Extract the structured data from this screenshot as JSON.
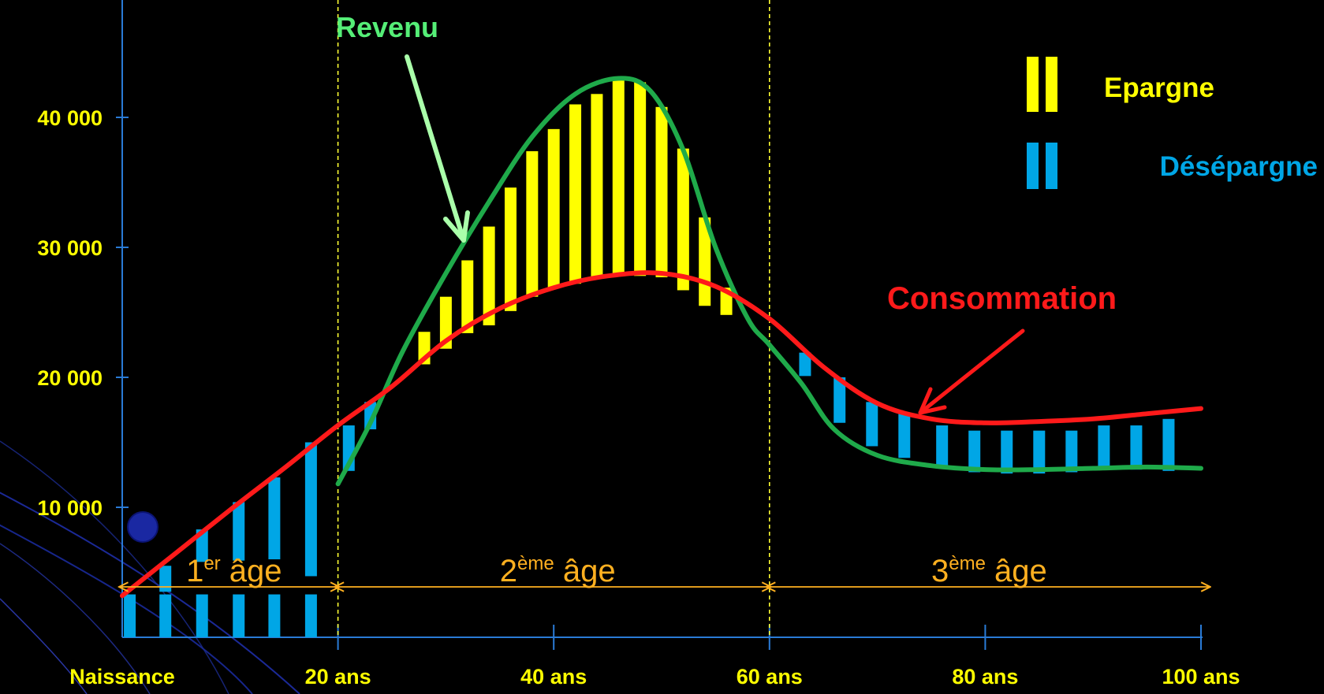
{
  "chart_data": {
    "type": "line",
    "title": "",
    "xlabel": "",
    "ylabel": "",
    "xlim": [
      0,
      100
    ],
    "ylim": [
      0,
      46000
    ],
    "x_ticks": [
      {
        "x": 0,
        "label": "Naissance"
      },
      {
        "x": 20,
        "label": "20 ans"
      },
      {
        "x": 40,
        "label": "40 ans"
      },
      {
        "x": 60,
        "label": "60 ans"
      },
      {
        "x": 80,
        "label": "80 ans"
      },
      {
        "x": 100,
        "label": "100 ans"
      }
    ],
    "y_ticks": [
      {
        "y": 10000,
        "label": "10 000"
      },
      {
        "y": 20000,
        "label": "20 000"
      },
      {
        "y": 30000,
        "label": "30 000"
      },
      {
        "y": 40000,
        "label": "40 000"
      }
    ],
    "series": [
      {
        "name": "Revenu",
        "color": "#1faa4a",
        "x": [
          20,
          23,
          26,
          30,
          34,
          38,
          42,
          46,
          49,
          52,
          55,
          58,
          60,
          63,
          66,
          70,
          75,
          80,
          85,
          90,
          95,
          100
        ],
        "y": [
          11800,
          16500,
          22000,
          28000,
          33500,
          38500,
          41800,
          43000,
          42000,
          37500,
          30000,
          24500,
          22500,
          19500,
          16000,
          14000,
          13200,
          12900,
          12900,
          13000,
          13100,
          13000
        ]
      },
      {
        "name": "Consommation",
        "color": "#ff1a1a",
        "x": [
          0,
          5,
          10,
          15,
          20,
          25,
          30,
          35,
          40,
          45,
          50,
          55,
          60,
          65,
          70,
          75,
          80,
          85,
          90,
          95,
          100
        ],
        "y": [
          3200,
          6500,
          9800,
          13000,
          16300,
          19300,
          22800,
          25300,
          26900,
          27800,
          28000,
          27000,
          24500,
          20800,
          18000,
          16800,
          16500,
          16600,
          16800,
          17200,
          17600
        ]
      }
    ],
    "epargne_bars": [
      {
        "x": 28,
        "low": 21000,
        "high": 23500
      },
      {
        "x": 30,
        "low": 22200,
        "high": 26200
      },
      {
        "x": 32,
        "low": 23400,
        "high": 29000
      },
      {
        "x": 34,
        "low": 24000,
        "high": 31600
      },
      {
        "x": 36,
        "low": 25100,
        "high": 34600
      },
      {
        "x": 38,
        "low": 26200,
        "high": 37400
      },
      {
        "x": 40,
        "low": 26900,
        "high": 39100
      },
      {
        "x": 42,
        "low": 27200,
        "high": 41000
      },
      {
        "x": 44,
        "low": 27600,
        "high": 41800
      },
      {
        "x": 46,
        "low": 27800,
        "high": 42900
      },
      {
        "x": 48,
        "low": 27800,
        "high": 42700
      },
      {
        "x": 50,
        "low": 27700,
        "high": 40800
      },
      {
        "x": 52,
        "low": 26700,
        "high": 37600
      },
      {
        "x": 54,
        "low": 25500,
        "high": 32300
      },
      {
        "x": 56,
        "low": 24800,
        "high": 26900
      }
    ],
    "desepargne_bars": [
      {
        "x": 0.7,
        "low": 0,
        "high": 3300
      },
      {
        "x": 4,
        "low": 0,
        "high": 3300
      },
      {
        "x": 4,
        "low": 3500,
        "high": 5500
      },
      {
        "x": 7.4,
        "low": 0,
        "high": 3300
      },
      {
        "x": 7.4,
        "low": 5800,
        "high": 8300
      },
      {
        "x": 10.8,
        "low": 0,
        "high": 3300
      },
      {
        "x": 10.8,
        "low": 5900,
        "high": 10400
      },
      {
        "x": 14.1,
        "low": 0,
        "high": 3300
      },
      {
        "x": 14.1,
        "low": 6000,
        "high": 12300
      },
      {
        "x": 17.5,
        "low": 0,
        "high": 3300
      },
      {
        "x": 17.5,
        "low": 4700,
        "high": 15000
      },
      {
        "x": 21,
        "low": 12800,
        "high": 16300
      },
      {
        "x": 23,
        "low": 16000,
        "high": 18100
      },
      {
        "x": 63.3,
        "low": 20100,
        "high": 21900
      },
      {
        "x": 66.5,
        "low": 16500,
        "high": 20000
      },
      {
        "x": 69.5,
        "low": 14700,
        "high": 18100
      },
      {
        "x": 72.5,
        "low": 13800,
        "high": 17200
      },
      {
        "x": 76,
        "low": 13000,
        "high": 16300
      },
      {
        "x": 79,
        "low": 12700,
        "high": 15900
      },
      {
        "x": 82,
        "low": 12600,
        "high": 15900
      },
      {
        "x": 85,
        "low": 12600,
        "high": 15900
      },
      {
        "x": 88,
        "low": 12700,
        "high": 15900
      },
      {
        "x": 91,
        "low": 12900,
        "high": 16300
      },
      {
        "x": 94,
        "low": 12900,
        "high": 16300
      },
      {
        "x": 97,
        "low": 12800,
        "high": 16800
      }
    ],
    "legend": {
      "placement": "top-right",
      "epargne": {
        "label": "Epargne",
        "color": "#ffff00"
      },
      "desepargne": {
        "label": "Désépargne",
        "color": "#00a6e6"
      }
    },
    "annotations": {
      "revenu": {
        "label": "Revenu",
        "color": "#55ee77"
      },
      "consommation": {
        "label": "Consommation",
        "color": "#ff1a1a"
      }
    },
    "age_periods": [
      {
        "number": "1",
        "superscript": "er",
        "label": "âge",
        "from": 0,
        "to": 20
      },
      {
        "number": "2",
        "superscript": "ème",
        "label": "âge",
        "from": 20,
        "to": 60
      },
      {
        "number": "3",
        "superscript": "ème",
        "label": "âge",
        "from": 60,
        "to": 101
      }
    ],
    "vertical_dividers": [
      20,
      60
    ],
    "grid": false
  }
}
